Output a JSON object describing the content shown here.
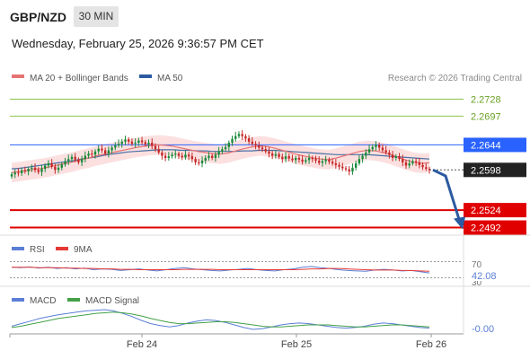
{
  "header": {
    "symbol": "GBP/NZD",
    "timeframe": "30 MIN",
    "datetime": "Wednesday, February 25, 2026 9:36:57 PM CET"
  },
  "legend": {
    "ma20": "MA 20 + Bollinger Bands",
    "ma50": "MA 50",
    "source": "Research © 2026 Trading Central",
    "rsi": "RSI",
    "rsi_ma": "9MA",
    "macd": "MACD",
    "macd_signal": "MACD Signal"
  },
  "colors": {
    "candle_up": "#1a8a3a",
    "candle_down": "#c62828",
    "ma20": "#e57373",
    "ma50": "#4a6fa5",
    "bollinger_fill": "#fbd5d5",
    "resistance": "#8bc34a",
    "pivot": "#2962ff",
    "support": "#e00000",
    "current": "#222222",
    "forecast_arrow": "#2c5aa0",
    "rsi": "#5b7fd6",
    "rsi_ma": "#e53935",
    "macd": "#5b7fd6",
    "macd_signal": "#43a047"
  },
  "chart_data": [
    {
      "type": "candlestick",
      "title": "GBP/NZD",
      "timeframe": "30 MIN",
      "x_ticks": [
        "Feb 24",
        "Feb 25",
        "Feb 26"
      ],
      "ylim": [
        2.2478,
        2.2752
      ],
      "levels": [
        {
          "label": "2.2728",
          "value": 2.2728,
          "kind": "resistance"
        },
        {
          "label": "2.2697",
          "value": 2.2697,
          "kind": "resistance"
        },
        {
          "label": "2.2644",
          "value": 2.2644,
          "kind": "pivot"
        },
        {
          "label": "2.2598",
          "value": 2.2598,
          "kind": "current"
        },
        {
          "label": "2.2524",
          "value": 2.2524,
          "kind": "support"
        },
        {
          "label": "2.2492",
          "value": 2.2492,
          "kind": "support"
        }
      ],
      "forecast": {
        "from": 2.2598,
        "to": 2.2492,
        "direction": "down"
      },
      "close": [
        2.259,
        2.2593,
        2.2592,
        2.2597,
        2.2595,
        2.26,
        2.2602,
        2.2598,
        2.2594,
        2.26,
        2.2606,
        2.261,
        2.2604,
        2.2598,
        2.2602,
        2.2608,
        2.2614,
        2.2618,
        2.2622,
        2.2617,
        2.2612,
        2.2618,
        2.2624,
        2.2628,
        2.2626,
        2.2632,
        2.2637,
        2.2634,
        2.2628,
        2.2634,
        2.2639,
        2.2643,
        2.2646,
        2.265,
        2.2654,
        2.265,
        2.2646,
        2.2648,
        2.2652,
        2.2649,
        2.2645,
        2.2648,
        2.2642,
        2.2636,
        2.263,
        2.2624,
        2.262,
        2.2623,
        2.2626,
        2.2628,
        2.2624,
        2.2621,
        2.2626,
        2.2623,
        2.2618,
        2.2612,
        2.261,
        2.2615,
        2.262,
        2.2624,
        2.262,
        2.2626,
        2.2632,
        2.2636,
        2.264,
        2.2648,
        2.2655,
        2.266,
        2.2664,
        2.266,
        2.2656,
        2.265,
        2.2646,
        2.2643,
        2.2639,
        2.2636,
        2.2632,
        2.2628,
        2.2624,
        2.2627,
        2.2622,
        2.2618,
        2.2623,
        2.2619,
        2.2616,
        2.262,
        2.2617,
        2.2613,
        2.2616,
        2.262,
        2.2618,
        2.2615,
        2.2611,
        2.2614,
        2.2617,
        2.2613,
        2.261,
        2.2607,
        2.2604,
        2.2601,
        2.2599,
        2.2595,
        2.2602,
        2.261,
        2.2618,
        2.2624,
        2.263,
        2.2636,
        2.264,
        2.2644,
        2.2639,
        2.2634,
        2.263,
        2.2626,
        2.262,
        2.2623,
        2.2618,
        2.2612,
        2.2606,
        2.261,
        2.2614,
        2.2612,
        2.2607,
        2.2603,
        2.26,
        2.2598
      ],
      "ma20": [
        2.2593,
        2.2595,
        2.2597,
        2.2599,
        2.2601,
        2.2604,
        2.2607,
        2.261,
        2.2613,
        2.2617,
        2.262,
        2.2624,
        2.2627,
        2.263,
        2.2633,
        2.2636,
        2.2639,
        2.2641,
        2.2643,
        2.2644,
        2.2643,
        2.2641,
        2.2638,
        2.2635,
        2.2632,
        2.263,
        2.2628,
        2.2627,
        2.2629,
        2.2633,
        2.2637,
        2.264,
        2.2642,
        2.2641,
        2.2638,
        2.2634,
        2.263,
        2.2626,
        2.2623,
        2.262,
        2.2618,
        2.2617,
        2.262,
        2.2624,
        2.2628,
        2.2632,
        2.2634,
        2.2633,
        2.263,
        2.2626,
        2.2621,
        2.2616,
        2.2612,
        2.261,
        2.2611
      ],
      "ma50": [
        2.26,
        2.2601,
        2.2603,
        2.2605,
        2.2607,
        2.2609,
        2.2611,
        2.2613,
        2.2615,
        2.2618,
        2.262,
        2.2622,
        2.2625,
        2.2627,
        2.2629,
        2.2631,
        2.2632,
        2.2633,
        2.2634,
        2.2635,
        2.2635,
        2.2635,
        2.2634,
        2.2634,
        2.2633,
        2.2633,
        2.2632,
        2.2632,
        2.2632,
        2.2632,
        2.2633,
        2.2633,
        2.2634,
        2.2634,
        2.2634,
        2.2633,
        2.2632,
        2.2631,
        2.263,
        2.2629,
        2.2628,
        2.2627,
        2.2626,
        2.2626,
        2.2626,
        2.2626,
        2.2626,
        2.2625,
        2.2624,
        2.2623,
        2.2622,
        2.2621,
        2.262,
        2.2619,
        2.2618
      ]
    },
    {
      "type": "line",
      "title": "RSI",
      "series": [
        {
          "name": "RSI",
          "values": [
            56,
            55,
            57,
            54,
            56,
            53,
            55,
            52,
            54,
            50,
            52,
            51,
            48,
            50,
            52,
            49,
            47,
            50,
            53,
            55,
            52,
            50,
            48,
            47,
            49,
            51,
            53,
            50,
            48,
            47,
            50,
            52,
            56,
            58,
            55,
            53,
            50,
            48,
            47,
            46,
            49,
            51,
            49,
            47,
            48,
            45,
            42
          ]
        },
        {
          "name": "9MA",
          "values": [
            56,
            56,
            56,
            55,
            55,
            55,
            54,
            54,
            53,
            53,
            52,
            52,
            51,
            51,
            50,
            50,
            50,
            50,
            50,
            51,
            51,
            51,
            51,
            50,
            50,
            50,
            50,
            50,
            50,
            50,
            50,
            50,
            51,
            52,
            52,
            53,
            53,
            52,
            51,
            50,
            49,
            49,
            49,
            48,
            48,
            47,
            46
          ]
        }
      ],
      "ticks": [
        "70",
        "30"
      ],
      "last_value": "42.08",
      "ylim": [
        20,
        80
      ]
    },
    {
      "type": "line",
      "title": "MACD",
      "series": [
        {
          "name": "MACD",
          "values": [
            2,
            6,
            10,
            14,
            17,
            20,
            22,
            24,
            26,
            27,
            28,
            26,
            22,
            17,
            11,
            6,
            3,
            1,
            3,
            7,
            10,
            12,
            11,
            8,
            4,
            0,
            -3,
            -2,
            1,
            4,
            6,
            7,
            6,
            4,
            2,
            0,
            -1,
            0,
            2,
            5,
            7,
            6,
            4,
            2,
            0,
            -1
          ]
        },
        {
          "name": "MACD Signal",
          "values": [
            0,
            2,
            5,
            8,
            11,
            14,
            16,
            18,
            20,
            22,
            23,
            24,
            23,
            21,
            18,
            14,
            11,
            8,
            6,
            6,
            7,
            8,
            9,
            9,
            8,
            6,
            4,
            2,
            1,
            1,
            2,
            3,
            4,
            4,
            4,
            3,
            2,
            1,
            1,
            2,
            3,
            4,
            4,
            3,
            2,
            1
          ]
        }
      ],
      "last_value": "-0.00"
    }
  ]
}
